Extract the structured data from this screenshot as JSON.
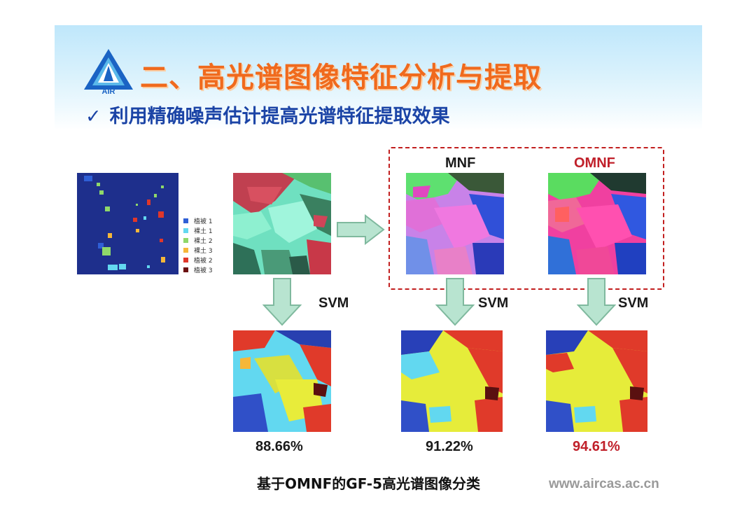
{
  "header": {
    "logo_text": "AIR",
    "title": "二、高光谱图像特征分析与提取",
    "subtitle_check": "✓",
    "subtitle": "利用精确噪声估计提高光谱特征提取效果"
  },
  "legend": {
    "items": [
      {
        "label": "植被 1",
        "color": "#2f5fd6"
      },
      {
        "label": "裸土 1",
        "color": "#63d8f0"
      },
      {
        "label": "裸土 2",
        "color": "#8fd86a"
      },
      {
        "label": "裸土 3",
        "color": "#f6b739"
      },
      {
        "label": "植被 2",
        "color": "#e0372a"
      },
      {
        "label": "植被 3",
        "color": "#6b1010"
      }
    ]
  },
  "labels": {
    "mnf": "MNF",
    "omnf": "OMNF",
    "svm": "SVM"
  },
  "accuracies": {
    "original": "88.66%",
    "mnf": "91.22%",
    "omnf": "94.61%"
  },
  "caption": "基于OMNF的GF-5高光谱图像分类",
  "website": "www.aircas.ac.cn",
  "colors": {
    "title": "#f06a1d",
    "subtitle": "#1b44a6",
    "highlight_red": "#c0202a",
    "arrow_fill": "#b8e4d0",
    "arrow_stroke": "#7fb99e",
    "ground_truth_bg": "#1e2f8c"
  }
}
